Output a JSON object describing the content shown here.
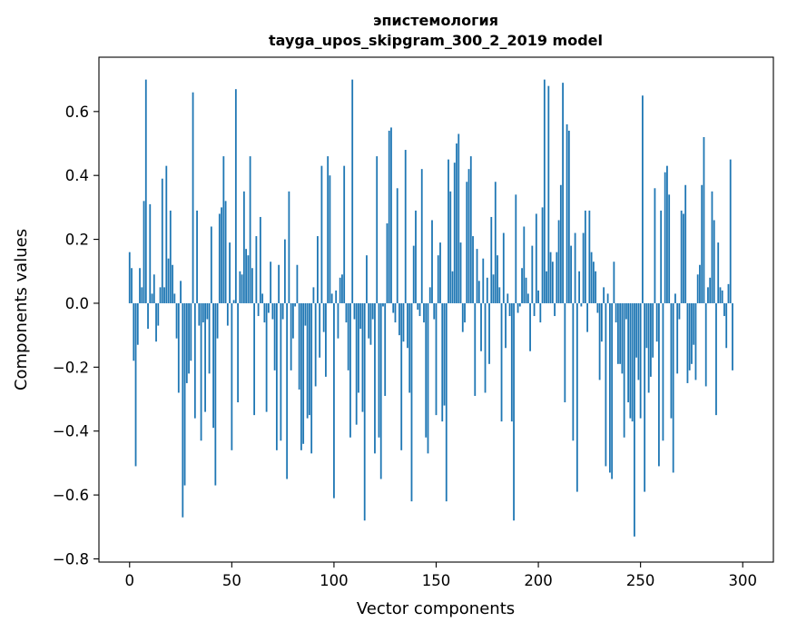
{
  "chart_data": {
    "type": "bar",
    "title": "эпистемология",
    "subtitle": "tayga_upos_skipgram_300_2_2019 model",
    "xlabel": "Vector components",
    "ylabel": "Components values",
    "xlim": [
      -15,
      315
    ],
    "ylim": [
      -0.81,
      0.77
    ],
    "xticks": [
      0,
      50,
      100,
      150,
      200,
      250,
      300
    ],
    "yticks": [
      -0.8,
      -0.6,
      -0.4,
      -0.2,
      0.0,
      0.2,
      0.4,
      0.6
    ],
    "ytick_labels": [
      "−0.8",
      "−0.6",
      "−0.4",
      "−0.2",
      "0.0",
      "0.2",
      "0.4",
      "0.6"
    ],
    "bar_color": "#1f77b4",
    "grid": false,
    "legend": "none",
    "values": [
      0.16,
      0.11,
      -0.18,
      -0.51,
      -0.13,
      0.11,
      0.05,
      0.32,
      0.7,
      -0.08,
      0.31,
      0.03,
      0.09,
      -0.12,
      -0.07,
      0.05,
      0.39,
      0.05,
      0.43,
      0.14,
      0.29,
      0.12,
      0.03,
      -0.11,
      -0.28,
      0.07,
      -0.67,
      -0.57,
      -0.25,
      -0.22,
      -0.18,
      0.66,
      -0.36,
      0.29,
      -0.07,
      -0.43,
      -0.06,
      -0.34,
      -0.05,
      -0.22,
      0.24,
      -0.39,
      -0.57,
      -0.11,
      0.28,
      0.3,
      0.46,
      0.32,
      -0.07,
      0.19,
      -0.46,
      0.01,
      0.67,
      -0.31,
      0.1,
      0.09,
      0.35,
      0.17,
      0.15,
      0.46,
      0.11,
      -0.35,
      0.21,
      -0.04,
      0.27,
      0.03,
      -0.06,
      -0.34,
      -0.03,
      0.13,
      -0.05,
      -0.21,
      -0.46,
      0.12,
      -0.43,
      -0.05,
      0.2,
      -0.55,
      0.35,
      -0.21,
      -0.11,
      -0.01,
      0.12,
      -0.27,
      -0.46,
      -0.44,
      -0.07,
      -0.36,
      -0.35,
      -0.47,
      0.05,
      -0.26,
      0.21,
      -0.17,
      0.43,
      -0.09,
      -0.23,
      0.46,
      0.4,
      0.03,
      -0.61,
      0.04,
      -0.11,
      0.08,
      0.09,
      0.43,
      -0.06,
      -0.21,
      -0.42,
      0.7,
      -0.05,
      -0.38,
      -0.28,
      -0.08,
      -0.34,
      -0.68,
      0.15,
      -0.11,
      -0.13,
      -0.05,
      -0.47,
      0.46,
      -0.42,
      -0.55,
      -0.01,
      -0.29,
      0.25,
      0.54,
      0.55,
      -0.03,
      -0.06,
      0.36,
      -0.1,
      -0.46,
      -0.12,
      0.48,
      -0.14,
      -0.28,
      -0.62,
      0.18,
      0.29,
      -0.02,
      -0.04,
      0.42,
      -0.06,
      -0.42,
      -0.47,
      0.05,
      0.26,
      -0.05,
      -0.35,
      0.15,
      0.19,
      -0.37,
      -0.32,
      -0.62,
      0.45,
      0.35,
      0.1,
      0.44,
      0.5,
      0.53,
      0.19,
      -0.09,
      -0.06,
      0.38,
      0.42,
      0.46,
      0.21,
      -0.29,
      0.17,
      0.07,
      -0.15,
      0.14,
      -0.28,
      0.08,
      -0.19,
      0.27,
      0.09,
      0.38,
      0.15,
      0.05,
      -0.37,
      0.22,
      -0.14,
      0.03,
      -0.04,
      -0.37,
      -0.68,
      0.34,
      -0.03,
      -0.01,
      0.11,
      0.24,
      0.08,
      0.03,
      -0.15,
      0.18,
      -0.04,
      0.28,
      0.04,
      -0.06,
      0.3,
      0.7,
      0.1,
      0.68,
      0.16,
      0.13,
      -0.04,
      0.16,
      0.26,
      0.37,
      0.69,
      -0.31,
      0.56,
      0.54,
      0.18,
      -0.43,
      0.22,
      -0.59,
      0.1,
      -0.01,
      0.22,
      0.29,
      -0.09,
      0.29,
      0.16,
      0.13,
      0.1,
      -0.03,
      -0.24,
      -0.12,
      0.05,
      -0.51,
      0.03,
      -0.53,
      -0.55,
      0.13,
      -0.06,
      -0.19,
      -0.19,
      -0.22,
      -0.42,
      -0.05,
      -0.31,
      -0.36,
      -0.37,
      -0.73,
      -0.17,
      -0.24,
      -0.36,
      0.65,
      -0.59,
      -0.14,
      -0.28,
      -0.23,
      -0.17,
      0.36,
      -0.12,
      -0.51,
      0.29,
      -0.43,
      0.41,
      0.43,
      0.34,
      -0.36,
      -0.53,
      0.03,
      -0.22,
      -0.05,
      0.29,
      0.28,
      0.37,
      -0.25,
      -0.21,
      -0.19,
      -0.13,
      -0.24,
      0.09,
      0.12,
      0.37,
      0.52,
      -0.26,
      0.05,
      0.08,
      0.35,
      0.26,
      -0.35,
      0.19,
      0.05,
      0.04,
      -0.04,
      -0.14,
      0.06,
      0.45,
      -0.21
    ]
  }
}
